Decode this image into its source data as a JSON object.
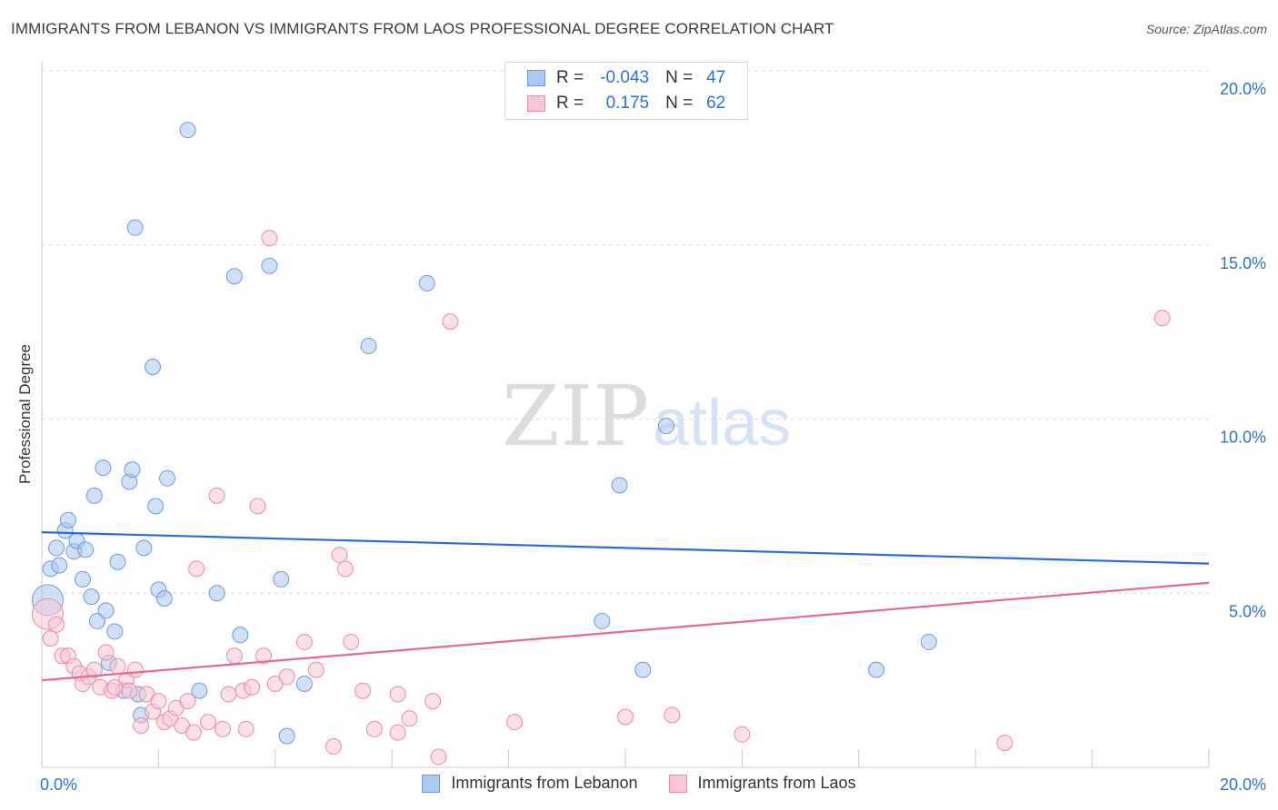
{
  "header": {
    "title": "IMMIGRANTS FROM LEBANON VS IMMIGRANTS FROM LAOS PROFESSIONAL DEGREE CORRELATION CHART",
    "source": "Source: ZipAtlas.com"
  },
  "watermark": {
    "zip": "ZIP",
    "atlas": "atlas"
  },
  "legend": {
    "rows": [
      {
        "r_label": "R =",
        "r_value": "-0.043",
        "n_label": "N =",
        "n_value": "47",
        "color": "#aac8f0",
        "border": "#6a9bd8"
      },
      {
        "r_label": "R =",
        "r_value": "0.175",
        "n_label": "N =",
        "n_value": "62",
        "color": "#f9c6d6",
        "border": "#e88aa8"
      }
    ],
    "bottom": [
      {
        "label": "Immigrants from Lebanon",
        "color": "#aac8f0",
        "border": "#6a9bd8"
      },
      {
        "label": "Immigrants from Laos",
        "color": "#f9c6d6",
        "border": "#e88aa8"
      }
    ]
  },
  "chart_data": {
    "type": "scatter",
    "title": "IMMIGRANTS FROM LEBANON VS IMMIGRANTS FROM LAOS PROFESSIONAL DEGREE CORRELATION CHART",
    "xlabel": "",
    "ylabel": "Professional Degree",
    "xlim": [
      0,
      20
    ],
    "ylim": [
      0,
      20
    ],
    "x_tick_labels": [
      "0.0%",
      "20.0%"
    ],
    "y_tick_labels": [
      "5.0%",
      "10.0%",
      "15.0%",
      "20.0%"
    ],
    "y_ticks": [
      5,
      10,
      15,
      20
    ],
    "grid": true,
    "legend_position": "top-center",
    "series": [
      {
        "name": "Immigrants from Lebanon",
        "color": "#6a9bd8",
        "fill": "#aac8f0",
        "trend": {
          "x": [
            0,
            20
          ],
          "y": [
            6.75,
            5.85
          ]
        },
        "points": [
          {
            "x": 0.1,
            "y": 4.8,
            "big": true
          },
          {
            "x": 0.15,
            "y": 5.7
          },
          {
            "x": 0.25,
            "y": 6.3
          },
          {
            "x": 0.3,
            "y": 5.8
          },
          {
            "x": 0.4,
            "y": 6.8
          },
          {
            "x": 0.45,
            "y": 7.1
          },
          {
            "x": 0.55,
            "y": 6.2
          },
          {
            "x": 0.6,
            "y": 6.5
          },
          {
            "x": 0.7,
            "y": 5.4
          },
          {
            "x": 0.75,
            "y": 6.25
          },
          {
            "x": 0.85,
            "y": 4.9
          },
          {
            "x": 0.9,
            "y": 7.8
          },
          {
            "x": 0.95,
            "y": 4.2
          },
          {
            "x": 1.05,
            "y": 8.6
          },
          {
            "x": 1.1,
            "y": 4.5
          },
          {
            "x": 1.15,
            "y": 3.0
          },
          {
            "x": 1.25,
            "y": 3.9
          },
          {
            "x": 1.3,
            "y": 5.9
          },
          {
            "x": 1.4,
            "y": 2.2
          },
          {
            "x": 1.5,
            "y": 8.2
          },
          {
            "x": 1.55,
            "y": 8.55
          },
          {
            "x": 1.6,
            "y": 15.5
          },
          {
            "x": 1.65,
            "y": 2.1
          },
          {
            "x": 1.7,
            "y": 1.5
          },
          {
            "x": 1.75,
            "y": 6.3
          },
          {
            "x": 1.9,
            "y": 11.5
          },
          {
            "x": 1.95,
            "y": 7.5
          },
          {
            "x": 2.0,
            "y": 5.1
          },
          {
            "x": 2.1,
            "y": 4.85
          },
          {
            "x": 2.15,
            "y": 8.3
          },
          {
            "x": 2.5,
            "y": 18.3
          },
          {
            "x": 2.7,
            "y": 2.2
          },
          {
            "x": 3.0,
            "y": 5.0
          },
          {
            "x": 3.3,
            "y": 14.1
          },
          {
            "x": 3.4,
            "y": 3.8
          },
          {
            "x": 3.9,
            "y": 14.4
          },
          {
            "x": 4.1,
            "y": 5.4
          },
          {
            "x": 4.2,
            "y": 0.9
          },
          {
            "x": 4.5,
            "y": 2.4
          },
          {
            "x": 5.6,
            "y": 12.1
          },
          {
            "x": 6.6,
            "y": 13.9
          },
          {
            "x": 9.6,
            "y": 4.2
          },
          {
            "x": 9.9,
            "y": 8.1
          },
          {
            "x": 10.3,
            "y": 2.8
          },
          {
            "x": 10.7,
            "y": 9.8
          },
          {
            "x": 14.3,
            "y": 2.8
          },
          {
            "x": 15.2,
            "y": 3.6
          }
        ]
      },
      {
        "name": "Immigrants from Laos",
        "color": "#e88aa8",
        "fill": "#f9c6d6",
        "trend": {
          "x": [
            0,
            20
          ],
          "y": [
            2.5,
            5.3
          ]
        },
        "points": [
          {
            "x": 0.1,
            "y": 4.4,
            "big": true
          },
          {
            "x": 0.15,
            "y": 3.7
          },
          {
            "x": 0.25,
            "y": 4.1
          },
          {
            "x": 0.35,
            "y": 3.2
          },
          {
            "x": 0.45,
            "y": 3.2
          },
          {
            "x": 0.55,
            "y": 2.9
          },
          {
            "x": 0.65,
            "y": 2.7
          },
          {
            "x": 0.7,
            "y": 2.4
          },
          {
            "x": 0.8,
            "y": 2.6
          },
          {
            "x": 0.9,
            "y": 2.8
          },
          {
            "x": 1.0,
            "y": 2.3
          },
          {
            "x": 1.1,
            "y": 3.3
          },
          {
            "x": 1.2,
            "y": 2.2
          },
          {
            "x": 1.3,
            "y": 2.9
          },
          {
            "x": 1.45,
            "y": 2.5
          },
          {
            "x": 1.5,
            "y": 2.2
          },
          {
            "x": 1.6,
            "y": 2.8
          },
          {
            "x": 1.7,
            "y": 1.2
          },
          {
            "x": 1.8,
            "y": 2.1
          },
          {
            "x": 1.9,
            "y": 1.6
          },
          {
            "x": 2.0,
            "y": 1.9
          },
          {
            "x": 2.1,
            "y": 1.3
          },
          {
            "x": 2.2,
            "y": 1.4
          },
          {
            "x": 2.3,
            "y": 1.7
          },
          {
            "x": 2.4,
            "y": 1.2
          },
          {
            "x": 2.5,
            "y": 1.9
          },
          {
            "x": 2.6,
            "y": 1.0
          },
          {
            "x": 2.65,
            "y": 5.7
          },
          {
            "x": 2.85,
            "y": 1.3
          },
          {
            "x": 3.0,
            "y": 7.8
          },
          {
            "x": 3.1,
            "y": 1.1
          },
          {
            "x": 3.2,
            "y": 2.1
          },
          {
            "x": 3.3,
            "y": 3.2
          },
          {
            "x": 3.45,
            "y": 2.2
          },
          {
            "x": 3.5,
            "y": 1.1
          },
          {
            "x": 3.6,
            "y": 2.3
          },
          {
            "x": 3.7,
            "y": 7.5
          },
          {
            "x": 3.8,
            "y": 3.2
          },
          {
            "x": 3.9,
            "y": 15.2
          },
          {
            "x": 4.0,
            "y": 2.4
          },
          {
            "x": 4.2,
            "y": 2.6
          },
          {
            "x": 4.5,
            "y": 3.6
          },
          {
            "x": 4.7,
            "y": 2.8
          },
          {
            "x": 5.0,
            "y": 0.6
          },
          {
            "x": 5.1,
            "y": 6.1
          },
          {
            "x": 5.2,
            "y": 5.7
          },
          {
            "x": 5.3,
            "y": 3.6
          },
          {
            "x": 5.5,
            "y": 2.2
          },
          {
            "x": 5.7,
            "y": 1.1
          },
          {
            "x": 6.1,
            "y": 1.0
          },
          {
            "x": 6.1,
            "y": 2.1
          },
          {
            "x": 6.3,
            "y": 1.4
          },
          {
            "x": 6.7,
            "y": 1.9
          },
          {
            "x": 6.8,
            "y": 0.3
          },
          {
            "x": 7.0,
            "y": 12.8
          },
          {
            "x": 8.1,
            "y": 1.3
          },
          {
            "x": 10.0,
            "y": 1.45
          },
          {
            "x": 10.8,
            "y": 1.5
          },
          {
            "x": 12.0,
            "y": 0.95
          },
          {
            "x": 16.5,
            "y": 0.7
          },
          {
            "x": 19.2,
            "y": 12.9
          },
          {
            "x": 1.25,
            "y": 2.3
          }
        ]
      }
    ]
  }
}
